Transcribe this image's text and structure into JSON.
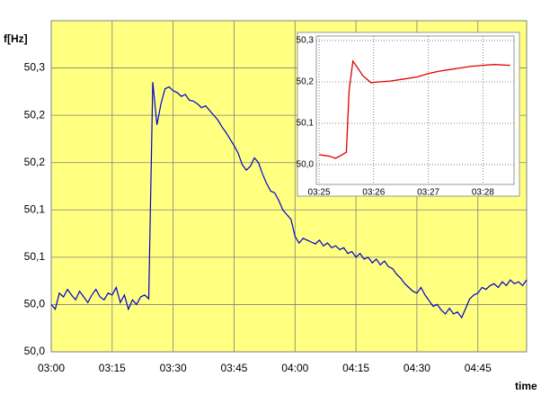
{
  "chart_data": [
    {
      "type": "line",
      "y_label": "f[Hz]",
      "x_label": "time",
      "x": [
        0,
        1,
        2,
        3,
        4,
        5,
        6,
        7,
        8,
        9,
        10,
        11,
        12,
        13,
        14,
        15,
        16,
        17,
        18,
        19,
        20,
        21,
        22,
        23,
        24,
        25,
        26,
        27,
        28,
        29,
        30,
        31,
        32,
        33,
        34,
        35,
        36,
        37,
        38,
        39,
        40,
        41,
        42,
        43,
        44,
        45,
        46,
        47,
        48,
        49,
        50,
        51,
        52,
        53,
        54,
        55,
        56,
        57,
        58,
        59,
        60,
        61,
        62,
        63,
        64,
        65,
        66,
        67,
        68,
        69,
        70,
        71,
        72,
        73,
        74,
        75,
        76,
        77,
        78,
        79,
        80,
        81,
        82,
        83,
        84,
        85,
        86,
        87,
        88,
        89,
        90,
        91,
        92,
        93,
        94,
        95,
        96,
        97,
        98,
        99,
        100,
        101,
        102,
        103,
        104,
        105,
        106,
        107,
        108,
        109,
        110,
        111,
        112,
        113,
        114,
        115,
        116,
        117
      ],
      "series": [
        {
          "color": "#0000cc",
          "values": [
            50.05,
            50.045,
            50.062,
            50.058,
            50.066,
            50.06,
            50.055,
            50.064,
            50.058,
            50.052,
            50.06,
            50.066,
            50.058,
            50.055,
            50.062,
            50.06,
            50.068,
            50.052,
            50.06,
            50.045,
            50.055,
            50.05,
            50.058,
            50.06,
            50.056,
            50.285,
            50.24,
            50.262,
            50.278,
            50.28,
            50.276,
            50.274,
            50.27,
            50.272,
            50.266,
            50.265,
            50.262,
            50.258,
            50.26,
            50.255,
            50.25,
            50.245,
            50.238,
            50.232,
            50.225,
            50.218,
            50.21,
            50.198,
            50.192,
            50.196,
            50.205,
            50.2,
            50.188,
            50.178,
            50.17,
            50.168,
            50.16,
            50.15,
            50.145,
            50.14,
            50.122,
            50.115,
            50.12,
            50.118,
            50.116,
            50.114,
            50.118,
            50.112,
            50.115,
            50.11,
            50.112,
            50.108,
            50.11,
            50.104,
            50.106,
            50.1,
            50.104,
            50.098,
            50.1,
            50.094,
            50.098,
            50.092,
            50.096,
            50.09,
            50.088,
            50.082,
            50.078,
            50.072,
            50.068,
            50.064,
            50.062,
            50.068,
            50.06,
            50.054,
            50.048,
            50.05,
            50.044,
            50.04,
            50.046,
            50.04,
            50.042,
            50.036,
            50.046,
            50.056,
            50.06,
            50.062,
            50.068,
            50.066,
            50.07,
            50.072,
            50.068,
            50.074,
            50.07,
            50.076,
            50.072,
            50.074,
            50.07,
            50.076
          ]
        }
      ],
      "xlim": [
        0,
        117
      ],
      "xticks": [
        {
          "value": 0,
          "label": "03:00"
        },
        {
          "value": 15,
          "label": "03:15"
        },
        {
          "value": 30,
          "label": "03:30"
        },
        {
          "value": 45,
          "label": "03:45"
        },
        {
          "value": 60,
          "label": "04:00"
        },
        {
          "value": 75,
          "label": "04:15"
        },
        {
          "value": 90,
          "label": "04:30"
        },
        {
          "value": 105,
          "label": "04:45"
        }
      ],
      "ylim": [
        50.0,
        50.35
      ],
      "yticks": [
        {
          "value": 50.0,
          "label": "50,0"
        },
        {
          "value": 50.05,
          "label": "50,0"
        },
        {
          "value": 50.1,
          "label": "50,1"
        },
        {
          "value": 50.15,
          "label": "50,1"
        },
        {
          "value": 50.2,
          "label": "50,2"
        },
        {
          "value": 50.25,
          "label": "50,2"
        },
        {
          "value": 50.3,
          "label": "50,3"
        }
      ],
      "grid": true,
      "background": "#ffff80"
    },
    {
      "type": "line",
      "x": [
        25.0,
        25.1,
        25.2,
        25.3,
        25.4,
        25.5,
        25.55,
        25.62,
        25.7,
        25.8,
        25.95,
        26.1,
        26.3,
        26.5,
        26.8,
        27.0,
        27.2,
        27.5,
        27.8,
        28.0,
        28.2,
        28.5
      ],
      "series": [
        {
          "color": "#dd0000",
          "values": [
            50.024,
            50.022,
            50.02,
            50.015,
            50.022,
            50.03,
            50.18,
            50.25,
            50.235,
            50.215,
            50.198,
            50.2,
            50.202,
            50.206,
            50.212,
            50.22,
            50.226,
            50.232,
            50.238,
            50.24,
            50.242,
            50.24
          ]
        }
      ],
      "xlim": [
        24.95,
        28.57
      ],
      "xticks": [
        {
          "value": 25,
          "label": "03:25"
        },
        {
          "value": 26,
          "label": "03:26"
        },
        {
          "value": 27,
          "label": "03:27"
        },
        {
          "value": 28,
          "label": "03:28"
        }
      ],
      "ylim": [
        49.952,
        50.311
      ],
      "yticks": [
        {
          "value": 50.0,
          "label": "50,0"
        },
        {
          "value": 50.1,
          "label": "50,1"
        },
        {
          "value": 50.2,
          "label": "50,2"
        },
        {
          "value": 50.3,
          "label": "50,3"
        }
      ],
      "grid": true,
      "background": "#ffffff"
    }
  ]
}
